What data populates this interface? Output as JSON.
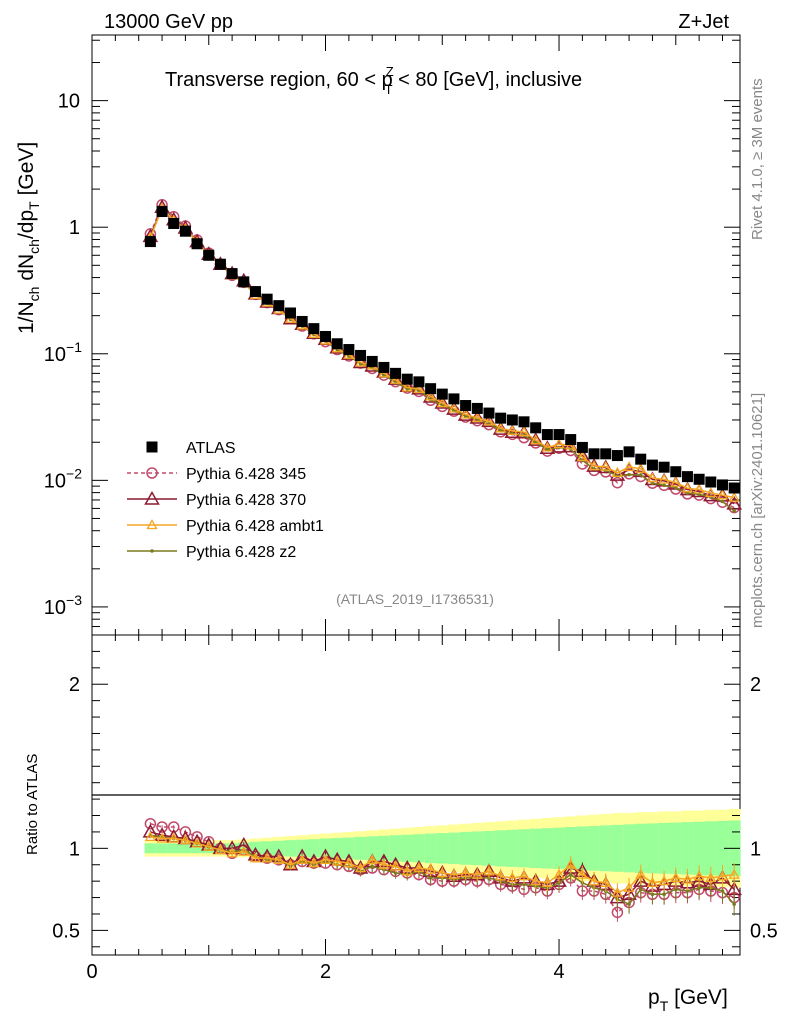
{
  "header": {
    "left": "13000 GeV pp",
    "right": "Z+Jet"
  },
  "side": {
    "rivet": "Rivet 4.1.0, ≥ 3M events",
    "source": "mcplots.cern.ch [arXiv:2401.10621]"
  },
  "chart_data": {
    "type": "scatter",
    "title": "Transverse region, 60 < p_T^Z < 80 [GeV], inclusive",
    "title_parts": {
      "pre": "Transverse region, 60 < p",
      "sup": "Z",
      "sub": "T",
      "post": " < 80 [GeV], inclusive"
    },
    "ylabel": "1/N_ch dN_ch/dp_T [GeV]",
    "ylabel_parts": {
      "a": "1/N",
      "a_sub": "ch",
      "b": " dN",
      "b_sub": "ch",
      "c": "/dp",
      "c_sub": "T",
      "d": " [GeV]"
    },
    "xlabel": "p_T [GeV]",
    "xlabel_parts": {
      "a": "p",
      "a_sub": "T",
      "b": " [GeV]"
    },
    "ratio_ylabel": "Ratio to ATLAS",
    "analysis_tag": "(ATLAS_2019_I1736531)",
    "xlim": [
      0,
      5.55
    ],
    "ylim": [
      0.0006,
      33
    ],
    "yscale": "log",
    "ratio_ylim": [
      0.35,
      2.3
    ],
    "x_ticks": [
      "0",
      "2",
      "4"
    ],
    "y_ticks": [
      {
        "base": "10",
        "exp": "−3"
      },
      {
        "base": "10",
        "exp": "−2"
      },
      {
        "base": "10",
        "exp": "−1"
      },
      {
        "base": "1",
        "exp": ""
      },
      {
        "base": "10",
        "exp": ""
      }
    ],
    "ratio_ticks": [
      "0.5",
      "1",
      "2"
    ],
    "x": [
      0.5,
      0.6,
      0.7,
      0.8,
      0.9,
      1.0,
      1.1,
      1.2,
      1.3,
      1.4,
      1.5,
      1.6,
      1.7,
      1.8,
      1.9,
      2.0,
      2.1,
      2.2,
      2.3,
      2.4,
      2.5,
      2.6,
      2.7,
      2.8,
      2.9,
      3.0,
      3.1,
      3.2,
      3.3,
      3.4,
      3.5,
      3.6,
      3.7,
      3.8,
      3.9,
      4.0,
      4.1,
      4.2,
      4.3,
      4.4,
      4.5,
      4.6,
      4.7,
      4.8,
      4.9,
      5.0,
      5.1,
      5.2,
      5.3,
      5.4,
      5.5
    ],
    "band_outer": [
      0.05,
      0.05,
      0.05,
      0.05,
      0.05,
      0.05,
      0.05,
      0.05,
      0.055,
      0.06,
      0.065,
      0.07,
      0.075,
      0.08,
      0.085,
      0.09,
      0.095,
      0.1,
      0.105,
      0.11,
      0.115,
      0.12,
      0.125,
      0.13,
      0.135,
      0.14,
      0.145,
      0.15,
      0.155,
      0.16,
      0.165,
      0.17,
      0.175,
      0.18,
      0.185,
      0.19,
      0.195,
      0.2,
      0.205,
      0.21,
      0.215,
      0.215,
      0.22,
      0.22,
      0.225,
      0.225,
      0.23,
      0.23,
      0.235,
      0.235,
      0.24
    ],
    "band_inner": [
      0.03,
      0.03,
      0.03,
      0.03,
      0.03,
      0.03,
      0.03,
      0.03,
      0.035,
      0.04,
      0.043,
      0.046,
      0.05,
      0.053,
      0.056,
      0.06,
      0.063,
      0.066,
      0.07,
      0.073,
      0.076,
      0.08,
      0.083,
      0.086,
      0.09,
      0.093,
      0.096,
      0.1,
      0.103,
      0.106,
      0.11,
      0.113,
      0.116,
      0.12,
      0.123,
      0.126,
      0.13,
      0.133,
      0.136,
      0.14,
      0.143,
      0.146,
      0.15,
      0.152,
      0.155,
      0.157,
      0.16,
      0.162,
      0.165,
      0.167,
      0.17
    ],
    "series": [
      {
        "name": "ATLAS",
        "style": "data",
        "color": "#000000",
        "marker": "square",
        "values": [
          0.77,
          1.33,
          1.07,
          0.93,
          0.74,
          0.6,
          0.51,
          0.43,
          0.37,
          0.31,
          0.27,
          0.24,
          0.21,
          0.18,
          0.158,
          0.137,
          0.12,
          0.108,
          0.097,
          0.087,
          0.078,
          0.07,
          0.063,
          0.06,
          0.053,
          0.048,
          0.044,
          0.039,
          0.037,
          0.034,
          0.031,
          0.03,
          0.029,
          0.026,
          0.023,
          0.023,
          0.021,
          0.0182,
          0.0162,
          0.0162,
          0.0157,
          0.0168,
          0.0147,
          0.0132,
          0.0127,
          0.0117,
          0.0107,
          0.0102,
          0.0097,
          0.0092,
          0.0087
        ]
      },
      {
        "name": "Pythia 6.428 345",
        "style": "dashed",
        "color": "#c24a6b",
        "marker": "circle",
        "ratio": [
          1.15,
          1.13,
          1.13,
          1.1,
          1.07,
          1.04,
          1.0,
          0.97,
          0.99,
          0.95,
          0.94,
          0.93,
          0.9,
          0.92,
          0.91,
          0.91,
          0.9,
          0.89,
          0.87,
          0.88,
          0.87,
          0.86,
          0.85,
          0.84,
          0.81,
          0.8,
          0.8,
          0.81,
          0.8,
          0.81,
          0.78,
          0.77,
          0.75,
          0.76,
          0.74,
          0.78,
          0.82,
          0.74,
          0.74,
          0.72,
          0.61,
          0.67,
          0.73,
          0.72,
          0.72,
          0.73,
          0.73,
          0.75,
          0.74,
          0.73,
          0.7
        ]
      },
      {
        "name": "Pythia 6.428 370",
        "style": "solid",
        "color": "#8b1a32",
        "marker": "triangle",
        "ratio": [
          1.1,
          1.08,
          1.07,
          1.06,
          1.04,
          1.02,
          1.0,
          1.0,
          1.02,
          0.96,
          0.95,
          0.95,
          0.9,
          0.95,
          0.92,
          0.95,
          0.93,
          0.92,
          0.88,
          0.92,
          0.92,
          0.9,
          0.88,
          0.88,
          0.86,
          0.85,
          0.83,
          0.84,
          0.84,
          0.86,
          0.82,
          0.8,
          0.82,
          0.8,
          0.78,
          0.8,
          0.88,
          0.86,
          0.8,
          0.78,
          0.7,
          0.72,
          0.8,
          0.77,
          0.78,
          0.8,
          0.79,
          0.8,
          0.78,
          0.82,
          0.75
        ]
      },
      {
        "name": "Pythia 6.428 ambt1",
        "style": "solid",
        "color": "#f5a623",
        "marker": "triangle-open",
        "ratio": [
          1.07,
          1.06,
          1.06,
          1.05,
          1.03,
          1.01,
          0.99,
          0.97,
          0.98,
          0.94,
          0.94,
          0.93,
          0.9,
          0.93,
          0.91,
          0.93,
          0.92,
          0.91,
          0.88,
          0.93,
          0.9,
          0.89,
          0.86,
          0.88,
          0.87,
          0.85,
          0.84,
          0.85,
          0.84,
          0.86,
          0.83,
          0.82,
          0.83,
          0.8,
          0.79,
          0.84,
          0.9,
          0.84,
          0.8,
          0.79,
          0.73,
          0.76,
          0.84,
          0.79,
          0.8,
          0.82,
          0.81,
          0.83,
          0.82,
          0.83,
          0.84
        ]
      },
      {
        "name": "Pythia 6.428 z2",
        "style": "solid",
        "color": "#7a7a1f",
        "marker": "dot",
        "ratio": [
          1.08,
          1.07,
          1.06,
          1.05,
          1.03,
          1.01,
          0.99,
          0.98,
          0.99,
          0.95,
          0.93,
          0.93,
          0.89,
          0.92,
          0.9,
          0.92,
          0.9,
          0.89,
          0.86,
          0.89,
          0.87,
          0.85,
          0.84,
          0.86,
          0.82,
          0.82,
          0.81,
          0.82,
          0.82,
          0.82,
          0.8,
          0.78,
          0.78,
          0.77,
          0.76,
          0.79,
          0.84,
          0.79,
          0.76,
          0.74,
          0.69,
          0.66,
          0.75,
          0.72,
          0.72,
          0.75,
          0.74,
          0.76,
          0.76,
          0.74,
          0.66
        ]
      }
    ]
  }
}
